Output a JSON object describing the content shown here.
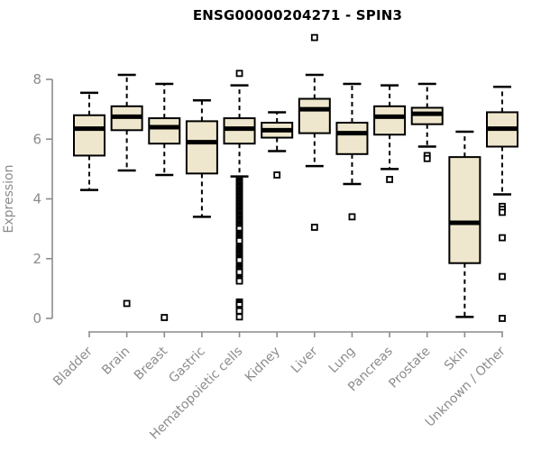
{
  "colors": {
    "box_fill": "#efe7cd",
    "box_stroke": "#000000",
    "median": "#000000",
    "whisker": "#000000",
    "outlier_stroke": "#000000",
    "outlier_fill": "#ffffff",
    "axis": "#8c8c8c",
    "tick_label": "#8b8b8b",
    "title": "#000000",
    "background": "#ffffff"
  },
  "chart_data": {
    "type": "boxplot",
    "title": "ENSG00000204271 - SPIN3",
    "xlabel": "",
    "ylabel": "Expression",
    "ylim": [
      0,
      8
    ],
    "yticks": [
      0,
      2,
      4,
      6,
      8
    ],
    "grid": false,
    "legend": null,
    "x_tick_rotation_deg": -45,
    "categories": [
      "Bladder",
      "Brain",
      "Breast",
      "Gastric",
      "Hematopoietic cells",
      "Kidney",
      "Liver",
      "Lung",
      "Pancreas",
      "Prostate",
      "Skin",
      "Unknown / Other"
    ],
    "series": [
      {
        "name": "Bladder",
        "whisker_low": 4.3,
        "q1": 5.45,
        "median": 6.35,
        "q3": 6.8,
        "whisker_high": 7.55,
        "outliers": []
      },
      {
        "name": "Brain",
        "whisker_low": 4.95,
        "q1": 6.3,
        "median": 6.75,
        "q3": 7.1,
        "whisker_high": 8.15,
        "outliers": [
          0.5
        ]
      },
      {
        "name": "Breast",
        "whisker_low": 4.8,
        "q1": 5.85,
        "median": 6.4,
        "q3": 6.7,
        "whisker_high": 7.85,
        "outliers": [
          0.03
        ]
      },
      {
        "name": "Gastric",
        "whisker_low": 3.4,
        "q1": 4.85,
        "median": 5.9,
        "q3": 6.6,
        "whisker_high": 7.3,
        "outliers": []
      },
      {
        "name": "Hematopoietic cells",
        "whisker_low": 4.75,
        "q1": 5.85,
        "median": 6.35,
        "q3": 6.7,
        "whisker_high": 7.8,
        "outliers": [
          8.2,
          4.65,
          4.6,
          4.55,
          4.5,
          4.45,
          4.4,
          4.35,
          4.3,
          4.25,
          4.2,
          4.15,
          4.1,
          4.05,
          4.0,
          3.95,
          3.9,
          3.85,
          3.8,
          3.75,
          3.7,
          3.65,
          3.6,
          3.55,
          3.5,
          3.45,
          3.4,
          3.35,
          3.3,
          3.25,
          3.2,
          3.15,
          3.1,
          3.05,
          3.0,
          2.85,
          2.8,
          2.75,
          2.7,
          2.65,
          2.6,
          2.4,
          2.35,
          2.3,
          2.25,
          2.2,
          2.15,
          2.1,
          2.05,
          2.0,
          1.95,
          1.75,
          1.7,
          1.65,
          1.6,
          1.55,
          1.35,
          1.3,
          1.25,
          0.55,
          0.5,
          0.45,
          0.3,
          0.25,
          0.05
        ]
      },
      {
        "name": "Kidney",
        "whisker_low": 5.6,
        "q1": 6.05,
        "median": 6.3,
        "q3": 6.55,
        "whisker_high": 6.9,
        "outliers": [
          4.8
        ]
      },
      {
        "name": "Liver",
        "whisker_low": 5.1,
        "q1": 6.2,
        "median": 7.0,
        "q3": 7.35,
        "whisker_high": 8.15,
        "outliers": [
          9.4,
          3.05
        ]
      },
      {
        "name": "Lung",
        "whisker_low": 4.5,
        "q1": 5.5,
        "median": 6.2,
        "q3": 6.55,
        "whisker_high": 7.85,
        "outliers": [
          3.4
        ]
      },
      {
        "name": "Pancreas",
        "whisker_low": 5.0,
        "q1": 6.15,
        "median": 6.75,
        "q3": 7.1,
        "whisker_high": 7.8,
        "outliers": [
          4.65
        ]
      },
      {
        "name": "Prostate",
        "whisker_low": 5.75,
        "q1": 6.5,
        "median": 6.85,
        "q3": 7.05,
        "whisker_high": 7.85,
        "outliers": [
          5.45,
          5.35
        ]
      },
      {
        "name": "Skin",
        "whisker_low": 0.05,
        "q1": 1.85,
        "median": 3.2,
        "q3": 5.4,
        "whisker_high": 6.25,
        "outliers": []
      },
      {
        "name": "Unknown / Other",
        "whisker_low": 4.15,
        "q1": 5.75,
        "median": 6.35,
        "q3": 6.9,
        "whisker_high": 7.75,
        "outliers": [
          3.75,
          3.65,
          3.55,
          2.7,
          1.4,
          0.0
        ]
      }
    ]
  }
}
